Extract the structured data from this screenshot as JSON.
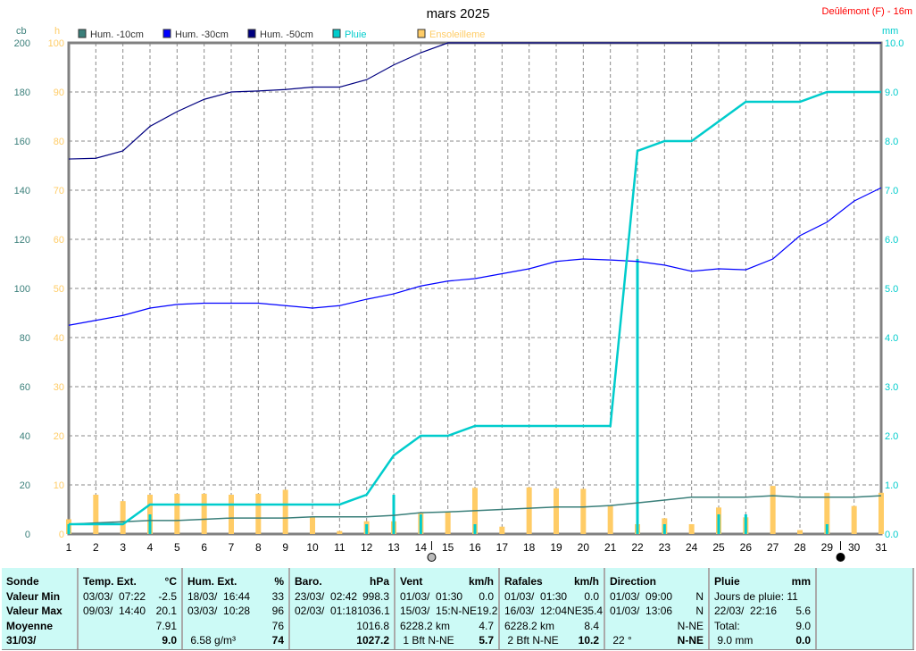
{
  "title": "mars 2025",
  "station": "Deûlémont (F) - 16m",
  "colors": {
    "hum10": "#3a7f7a",
    "hum30": "#0000ff",
    "hum50": "#000080",
    "pluie": "#00cccc",
    "soleil": "#ffcc66"
  },
  "chart_data": {
    "type": "line",
    "title": "mars 2025",
    "x_label": "",
    "categories": [
      1,
      2,
      3,
      4,
      5,
      6,
      7,
      8,
      9,
      10,
      11,
      12,
      13,
      14,
      15,
      16,
      17,
      18,
      19,
      20,
      21,
      22,
      23,
      24,
      25,
      26,
      27,
      28,
      29,
      30,
      31
    ],
    "axes": {
      "left_cb": {
        "unit": "cb",
        "range": [
          0,
          200
        ],
        "ticks": [
          0,
          20,
          40,
          60,
          80,
          100,
          120,
          140,
          160,
          180,
          200
        ]
      },
      "left_h": {
        "unit": "h",
        "range": [
          0,
          100
        ],
        "ticks": [
          0,
          10,
          20,
          30,
          40,
          50,
          60,
          70,
          80,
          90,
          100
        ]
      },
      "right_mm": {
        "unit": "mm",
        "range": [
          0,
          10
        ],
        "ticks": [
          "0.0",
          "1.0",
          "2.0",
          "3.0",
          "4.0",
          "5.0",
          "6.0",
          "7.0",
          "8.0",
          "9.0",
          "10.0"
        ]
      }
    },
    "grid": true,
    "legend": [
      "Hum. -10cm",
      "Hum. -30cm",
      "Hum. -50cm",
      "Pluie",
      "Ensoleilleme"
    ],
    "series": [
      {
        "name": "Hum. -10cm",
        "axis": "cb",
        "values": [
          4,
          4.5,
          5,
          5.5,
          5.5,
          6,
          6.5,
          6.5,
          6.5,
          7,
          7,
          7,
          7.6,
          8.7,
          9,
          9.5,
          10,
          10.5,
          11,
          11,
          11.6,
          12.7,
          13.8,
          15,
          15,
          15,
          15.6,
          15,
          15,
          15,
          15.6
        ]
      },
      {
        "name": "Hum. -30cm",
        "axis": "cb",
        "values": [
          85,
          87,
          89,
          92,
          93.5,
          94,
          94,
          94,
          93,
          92,
          93,
          95.6,
          97.8,
          101,
          103,
          104,
          106,
          108,
          111,
          112,
          111.6,
          111,
          109.5,
          107,
          108,
          107.6,
          112,
          121.5,
          127,
          135.6,
          141
        ]
      },
      {
        "name": "Hum. -50cm",
        "axis": "cb",
        "values": [
          152.7,
          153,
          156,
          166,
          172,
          177,
          180,
          180.4,
          181,
          182,
          182,
          185,
          191,
          196,
          200,
          200,
          200,
          200,
          200,
          200,
          200,
          200,
          200,
          200,
          200,
          200,
          200,
          200,
          200,
          200,
          200
        ]
      },
      {
        "name": "Pluie",
        "axis": "mm",
        "cumulative": [
          0.2,
          0.2,
          0.2,
          0.6,
          0.6,
          0.6,
          0.6,
          0.6,
          0.6,
          0.6,
          0.6,
          0.8,
          1.6,
          2.0,
          2.0,
          2.2,
          2.2,
          2.2,
          2.2,
          2.2,
          2.2,
          7.8,
          8.0,
          8.0,
          8.4,
          8.8,
          8.8,
          8.8,
          9.0,
          9.0,
          9.0
        ],
        "daily": [
          0.2,
          0,
          0,
          0.4,
          0,
          0,
          0,
          0,
          0,
          0,
          0,
          0.2,
          0.8,
          0.4,
          0,
          0.2,
          0,
          0,
          0,
          0,
          0,
          5.6,
          0.2,
          0,
          0.4,
          0.4,
          0,
          0,
          0.2,
          0,
          0
        ]
      },
      {
        "name": "Ensoleilleme",
        "axis": "h",
        "type": "bar",
        "values": [
          3,
          8,
          6.7,
          8,
          8.2,
          8.2,
          8,
          8.2,
          9,
          3.5,
          0.6,
          2.6,
          2.6,
          4.4,
          4.4,
          9.4,
          1.5,
          9.5,
          9.3,
          9.2,
          5.7,
          2,
          3.2,
          2,
          5.4,
          3.4,
          9.8,
          0.8,
          8.4,
          5.7,
          8.4
        ]
      }
    ],
    "moon_phases": [
      {
        "day": 14.4,
        "phase": "full-moon"
      },
      {
        "day": 29.5,
        "phase": "new-moon"
      }
    ]
  },
  "table": [
    {
      "rows": [
        [
          "Sonde",
          ""
        ],
        [
          "Valeur Min",
          ""
        ],
        [
          "Valeur Max",
          ""
        ],
        [
          "Moyenne",
          ""
        ],
        [
          "31/03/",
          ""
        ]
      ],
      "bold": true
    },
    {
      "rows": [
        [
          "Temp. Ext.",
          "°C"
        ],
        [
          "03/03/  07:22",
          "-2.5"
        ],
        [
          "09/03/  14:40",
          "20.1"
        ],
        [
          "",
          "7.91"
        ],
        [
          "",
          "9.0"
        ]
      ]
    },
    {
      "rows": [
        [
          "Hum. Ext.",
          "%"
        ],
        [
          "18/03/  16:44",
          "33"
        ],
        [
          "03/03/  10:28",
          "96"
        ],
        [
          "",
          "76"
        ],
        [
          " 6.58 g/m³",
          "74"
        ]
      ]
    },
    {
      "rows": [
        [
          "Baro.",
          "hPa"
        ],
        [
          "23/03/  02:42",
          "998.3"
        ],
        [
          "02/03/  01:18",
          "1036.1"
        ],
        [
          "",
          "1016.8"
        ],
        [
          "",
          "1027.2"
        ]
      ]
    },
    {
      "rows": [
        [
          "Vent",
          "km/h"
        ],
        [
          "01/03/  01:30",
          "0.0"
        ],
        [
          "15/03/  15:N-NE",
          "19.2"
        ],
        [
          "6228.2 km",
          "4.7"
        ],
        [
          " 1 Bft N-NE",
          "5.7"
        ]
      ]
    },
    {
      "rows": [
        [
          "Rafales",
          "km/h"
        ],
        [
          "01/03/  01:30",
          "0.0"
        ],
        [
          "16/03/  12:04NE",
          "35.4"
        ],
        [
          "6228.2 km",
          "8.4"
        ],
        [
          " 2 Bft N-NE",
          "10.2"
        ]
      ]
    },
    {
      "rows": [
        [
          "Direction",
          ""
        ],
        [
          "01/03/  09:00",
          "N"
        ],
        [
          "01/03/  13:06",
          "N"
        ],
        [
          "",
          "N-NE"
        ],
        [
          " 22 °",
          "N-NE"
        ]
      ]
    },
    {
      "rows": [
        [
          "Pluie",
          "mm"
        ],
        [
          "Jours de pluie: 11",
          ""
        ],
        [
          "22/03/  22:16",
          "5.6"
        ],
        [
          "Total:",
          "9.0"
        ],
        [
          " 9.0 mm",
          "0.0"
        ]
      ]
    },
    {
      "rows": []
    }
  ]
}
